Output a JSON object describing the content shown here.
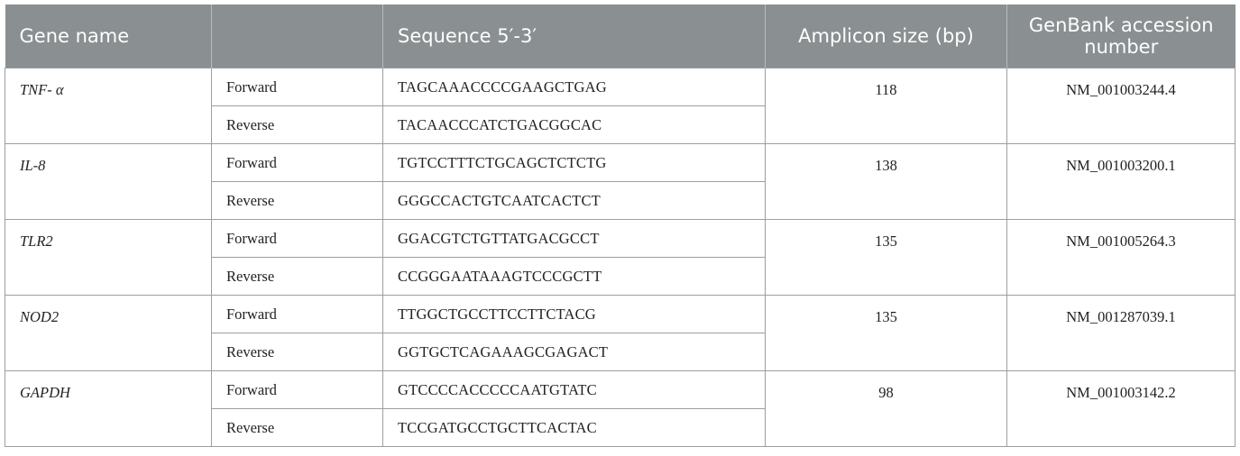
{
  "headers": {
    "gene": "Gene name",
    "direction": "",
    "sequence": "Sequence 5′-3′",
    "amplicon": "Amplicon size (bp)",
    "accession": "GenBank accession number"
  },
  "rows": [
    {
      "gene": "TNF- α",
      "forward_label": "Forward",
      "forward": "TAGCAAACCCCGAAGCTGAG",
      "reverse_label": "Reverse",
      "reverse": "TACAACCCATCTGACGGCAC",
      "amplicon": "118",
      "accession": "NM_001003244.4"
    },
    {
      "gene": "IL-8",
      "forward_label": "Forward",
      "forward": "TGTCCTTTCTGCAGCTCTCTG",
      "reverse_label": "Reverse",
      "reverse": "GGGCCACTGTCAATCACTCT",
      "amplicon": "138",
      "accession": "NM_001003200.1"
    },
    {
      "gene": "TLR2",
      "forward_label": "Forward",
      "forward": "GGACGTCTGTTATGACGCCT",
      "reverse_label": "Reverse",
      "reverse": "CCGGGAATAAAGTCCCGCTT",
      "amplicon": "135",
      "accession": "NM_001005264.3"
    },
    {
      "gene": "NOD2",
      "forward_label": "Forward",
      "forward": "TTGGCTGCCTTCCTTCTACG",
      "reverse_label": "Reverse",
      "reverse": "GGTGCTCAGAAAGCGAGACT",
      "amplicon": "135",
      "accession": "NM_001287039.1"
    },
    {
      "gene": "GAPDH",
      "forward_label": "Forward",
      "forward": "GTCCCCACCCCCAATGTATC",
      "reverse_label": "Reverse",
      "reverse": "TCCGATGCCTGCTTCACTAC",
      "amplicon": "98",
      "accession": "NM_001003142.2"
    }
  ]
}
